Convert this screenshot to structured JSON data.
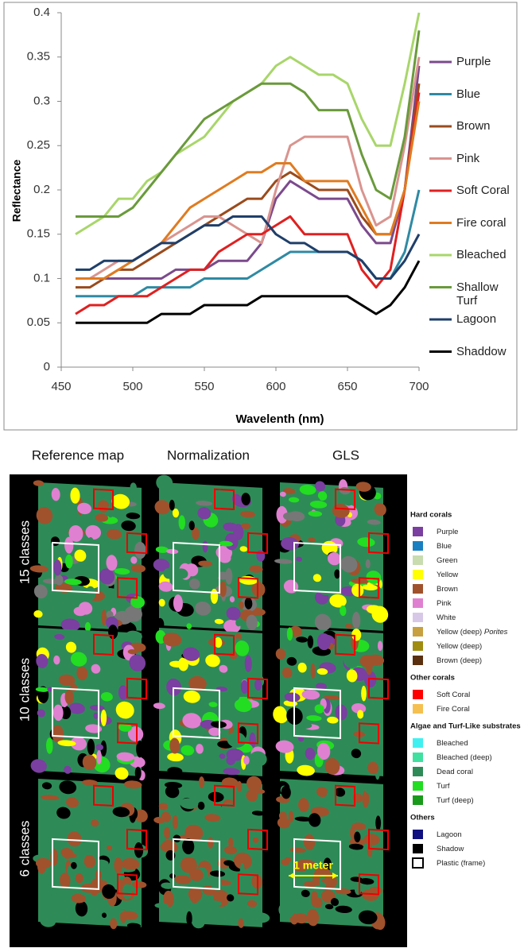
{
  "chart_data": {
    "type": "line",
    "x_label": "Wavelenth (nm)",
    "y_label": "Reflectance",
    "x": [
      460,
      470,
      480,
      490,
      500,
      510,
      520,
      530,
      540,
      550,
      560,
      570,
      580,
      590,
      600,
      610,
      620,
      630,
      640,
      650,
      660,
      670,
      680,
      690,
      700
    ],
    "xlim": [
      450,
      700
    ],
    "xticks": [
      450,
      500,
      550,
      600,
      650,
      700
    ],
    "ylim": [
      0,
      0.4
    ],
    "yticks": [
      0,
      0.05,
      0.1,
      0.15,
      0.2,
      0.25,
      0.3,
      0.35,
      0.4
    ],
    "legend": "right",
    "series": [
      {
        "name": "Purple",
        "color": "#7b4a8c",
        "values": [
          0.1,
          0.1,
          0.1,
          0.1,
          0.1,
          0.1,
          0.1,
          0.11,
          0.11,
          0.11,
          0.12,
          0.12,
          0.12,
          0.14,
          0.19,
          0.21,
          0.2,
          0.19,
          0.19,
          0.19,
          0.16,
          0.14,
          0.14,
          0.2,
          0.34
        ]
      },
      {
        "name": "Blue",
        "color": "#2f8aa3",
        "values": [
          0.08,
          0.08,
          0.08,
          0.08,
          0.08,
          0.09,
          0.09,
          0.09,
          0.09,
          0.1,
          0.1,
          0.1,
          0.1,
          0.11,
          0.12,
          0.13,
          0.13,
          0.13,
          0.13,
          0.13,
          0.12,
          0.1,
          0.1,
          0.13,
          0.2
        ]
      },
      {
        "name": "Brown",
        "color": "#9a4b1c",
        "values": [
          0.09,
          0.09,
          0.1,
          0.11,
          0.11,
          0.12,
          0.13,
          0.14,
          0.15,
          0.16,
          0.17,
          0.18,
          0.19,
          0.19,
          0.21,
          0.22,
          0.21,
          0.2,
          0.2,
          0.2,
          0.17,
          0.15,
          0.15,
          0.2,
          0.32
        ]
      },
      {
        "name": "Pink",
        "color": "#d9948f",
        "values": [
          0.1,
          0.1,
          0.11,
          0.12,
          0.12,
          0.13,
          0.14,
          0.15,
          0.16,
          0.17,
          0.17,
          0.16,
          0.15,
          0.14,
          0.2,
          0.25,
          0.26,
          0.26,
          0.26,
          0.26,
          0.2,
          0.16,
          0.17,
          0.25,
          0.35
        ]
      },
      {
        "name": "Soft Coral",
        "color": "#e02020",
        "values": [
          0.06,
          0.07,
          0.07,
          0.08,
          0.08,
          0.08,
          0.09,
          0.1,
          0.11,
          0.11,
          0.13,
          0.14,
          0.15,
          0.15,
          0.16,
          0.17,
          0.15,
          0.15,
          0.15,
          0.15,
          0.11,
          0.09,
          0.11,
          0.2,
          0.31
        ]
      },
      {
        "name": "Fire coral",
        "color": "#e07b20",
        "values": [
          0.1,
          0.1,
          0.1,
          0.11,
          0.12,
          0.13,
          0.14,
          0.16,
          0.18,
          0.19,
          0.2,
          0.21,
          0.22,
          0.22,
          0.23,
          0.23,
          0.21,
          0.21,
          0.21,
          0.21,
          0.18,
          0.15,
          0.15,
          0.2,
          0.3
        ]
      },
      {
        "name": "Bleached",
        "color": "#a8d66a",
        "values": [
          0.15,
          0.16,
          0.17,
          0.19,
          0.19,
          0.21,
          0.22,
          0.24,
          0.25,
          0.26,
          0.28,
          0.3,
          0.31,
          0.32,
          0.34,
          0.35,
          0.34,
          0.33,
          0.33,
          0.32,
          0.28,
          0.25,
          0.25,
          0.32,
          0.4
        ]
      },
      {
        "name": "Shallow Turf",
        "color": "#6a9a3c",
        "values": [
          0.17,
          0.17,
          0.17,
          0.17,
          0.18,
          0.2,
          0.22,
          0.24,
          0.26,
          0.28,
          0.29,
          0.3,
          0.31,
          0.32,
          0.32,
          0.32,
          0.31,
          0.29,
          0.29,
          0.29,
          0.24,
          0.2,
          0.19,
          0.26,
          0.38
        ]
      },
      {
        "name": "Lagoon",
        "color": "#1f3f6a",
        "values": [
          0.11,
          0.11,
          0.12,
          0.12,
          0.12,
          0.13,
          0.14,
          0.14,
          0.15,
          0.16,
          0.16,
          0.17,
          0.17,
          0.17,
          0.15,
          0.14,
          0.14,
          0.13,
          0.13,
          0.13,
          0.12,
          0.1,
          0.1,
          0.12,
          0.15
        ]
      },
      {
        "name": "Shaddow",
        "color": "#000000",
        "values": [
          0.05,
          0.05,
          0.05,
          0.05,
          0.05,
          0.05,
          0.06,
          0.06,
          0.06,
          0.07,
          0.07,
          0.07,
          0.07,
          0.08,
          0.08,
          0.08,
          0.08,
          0.08,
          0.08,
          0.08,
          0.07,
          0.06,
          0.07,
          0.09,
          0.12
        ]
      }
    ]
  },
  "figure": {
    "columns": [
      "Reference map",
      "Normalization",
      "GLS"
    ],
    "rows": [
      "15 classes",
      "10 classes",
      "6 classes"
    ],
    "annotation": "1 meter",
    "legend": [
      {
        "title": "Hard corals",
        "items": [
          {
            "label": "Purple",
            "color": "#7a3fa0"
          },
          {
            "label": "Blue",
            "color": "#1a7fc0"
          },
          {
            "label": "Green",
            "color": "#c8dcb0"
          },
          {
            "label": "Yellow",
            "color": "#ffff00"
          },
          {
            "label": "Brown",
            "color": "#a0522d"
          },
          {
            "label": "Pink",
            "color": "#e080d0"
          },
          {
            "label": "White",
            "color": "#d8c8e8"
          },
          {
            "label": "Yellow (deep)",
            "italic": "Porites",
            "color": "#c8a040"
          },
          {
            "label": "Yellow (deep)",
            "color": "#a08c10"
          },
          {
            "label": "Brown (deep)",
            "color": "#5a3010"
          }
        ]
      },
      {
        "title": "Other corals",
        "items": [
          {
            "label": "Soft Coral",
            "color": "#ff0000"
          },
          {
            "label": "Fire Coral",
            "color": "#f5c050"
          }
        ]
      },
      {
        "title": "Algae and Turf-Like substrates",
        "items": [
          {
            "label": "Bleached",
            "color": "#40f0f0"
          },
          {
            "label": "Bleached (deep)",
            "color": "#40e0a0"
          },
          {
            "label": "Dead coral",
            "color": "#2e8b57"
          },
          {
            "label": "Turf",
            "color": "#22dd22"
          },
          {
            "label": "Turf (deep)",
            "color": "#1a9a1a"
          }
        ]
      },
      {
        "title": "Others",
        "items": [
          {
            "label": "Lagoon",
            "color": "#101080"
          },
          {
            "label": "Shadow",
            "color": "#000000"
          },
          {
            "label": "Plastic (frame)",
            "color": "#ffffff"
          }
        ]
      }
    ]
  }
}
